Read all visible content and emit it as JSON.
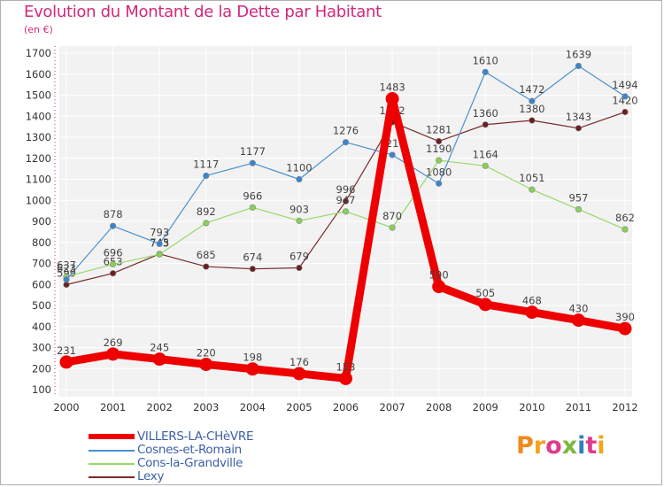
{
  "title": "Evolution du Montant de la Dette par Habitant",
  "unit": "(en €)",
  "brand": {
    "text": "Proxiti",
    "colors": [
      "#f08a1c",
      "#f2a51d",
      "#e03a8c",
      "#7ab83b",
      "#2f7fc1",
      "#e03a8c",
      "#f2a51d"
    ]
  },
  "chart_data": {
    "type": "line",
    "x": [
      "2000",
      "2001",
      "2002",
      "2003",
      "2004",
      "2005",
      "2006",
      "2007",
      "2008",
      "2009",
      "2010",
      "2011",
      "2012"
    ],
    "ylim": [
      100,
      1700
    ],
    "yticks": [
      100,
      200,
      300,
      400,
      500,
      600,
      700,
      800,
      900,
      1000,
      1100,
      1200,
      1300,
      1400,
      1500,
      1600,
      1700
    ],
    "grid": true,
    "legend_position": "bottom-left",
    "series": [
      {
        "name": "VILLERS-LA-CHèVRE",
        "color": "#ee0000",
        "values": [
          231,
          269,
          245,
          220,
          198,
          176,
          153,
          1483,
          590,
          505,
          468,
          430,
          390
        ]
      },
      {
        "name": "Cosnes-et-Romain",
        "color": "#4a90d0",
        "values": [
          623,
          878,
          793,
          1117,
          1177,
          1100,
          1276,
          1216,
          1080,
          1610,
          1472,
          1639,
          1494
        ]
      },
      {
        "name": "Cons-la-Grandville",
        "color": "#98d86a",
        "values": [
          637,
          696,
          743,
          892,
          966,
          903,
          947,
          870,
          1190,
          1164,
          1051,
          957,
          862
        ]
      },
      {
        "name": "Lexy",
        "color": "#7a2a2a",
        "values": [
          599,
          653,
          745,
          685,
          674,
          679,
          996,
          1372,
          1281,
          1360,
          1380,
          1343,
          1420
        ]
      }
    ]
  }
}
